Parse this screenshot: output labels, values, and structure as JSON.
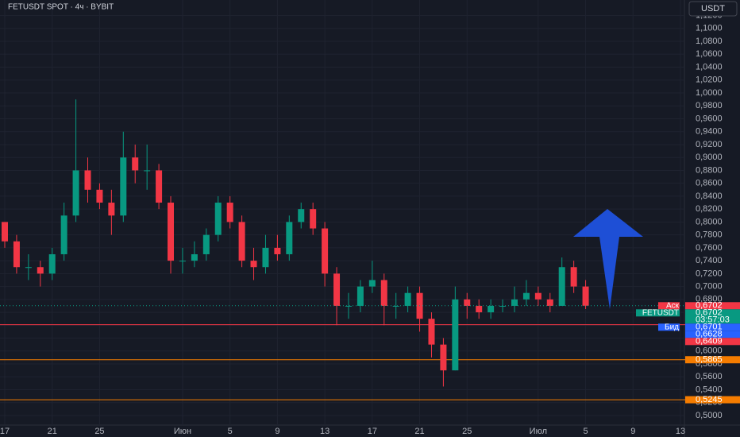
{
  "chart_data": {
    "type": "candlestick",
    "title": "FETUSDT SPOT · 4ч · BYBIT",
    "axis_unit": "USDT",
    "categories": [
      "17",
      null,
      null,
      null,
      "21",
      null,
      null,
      null,
      "25",
      null,
      null,
      null,
      null,
      null,
      null,
      "Июн",
      null,
      null,
      null,
      "5",
      null,
      null,
      null,
      "9",
      null,
      null,
      null,
      "13",
      null,
      null,
      null,
      "17",
      null,
      null,
      null,
      "21",
      null,
      null,
      null,
      "25",
      null,
      null,
      null,
      null,
      null,
      "Июл",
      null,
      null,
      null,
      "5",
      null,
      null,
      null,
      "9",
      null,
      null,
      null,
      "13"
    ],
    "open": [
      0.8,
      0.77,
      0.73,
      0.73,
      0.72,
      0.75,
      0.81,
      0.88,
      0.85,
      0.83,
      0.81,
      0.9,
      0.88,
      0.88,
      0.83,
      0.74,
      0.74,
      0.75,
      0.78,
      0.83,
      0.8,
      0.74,
      0.73,
      0.76,
      0.75,
      0.8,
      0.82,
      0.79,
      0.72,
      0.67,
      0.67,
      0.7,
      0.71,
      0.67,
      0.67,
      0.69,
      0.65,
      0.61,
      0.57,
      0.68,
      0.67,
      0.66,
      0.67,
      0.67,
      0.68,
      0.69,
      0.68,
      0.67,
      0.73,
      0.7,
      null,
      null,
      null,
      null,
      null,
      null,
      null,
      null
    ],
    "high": [
      0.8,
      0.78,
      0.75,
      0.74,
      0.76,
      0.83,
      0.99,
      0.9,
      0.86,
      0.85,
      0.94,
      0.92,
      0.92,
      0.89,
      0.84,
      0.76,
      0.77,
      0.79,
      0.84,
      0.84,
      0.81,
      0.76,
      0.78,
      0.78,
      0.81,
      0.83,
      0.83,
      0.8,
      0.73,
      0.69,
      0.71,
      0.74,
      0.72,
      0.69,
      0.7,
      0.7,
      0.66,
      0.62,
      0.7,
      0.69,
      0.68,
      0.68,
      0.68,
      0.7,
      0.71,
      0.7,
      0.69,
      0.745,
      0.74,
      0.71,
      null,
      null,
      null,
      null,
      null,
      null,
      null,
      null
    ],
    "low": [
      0.76,
      0.72,
      0.71,
      0.7,
      0.71,
      0.74,
      0.8,
      0.83,
      0.82,
      0.78,
      0.8,
      0.86,
      0.85,
      0.82,
      0.72,
      0.72,
      0.73,
      0.74,
      0.77,
      0.79,
      0.73,
      0.71,
      0.72,
      0.74,
      0.74,
      0.79,
      0.78,
      0.7,
      0.64,
      0.65,
      0.66,
      0.69,
      0.64,
      0.65,
      0.66,
      0.63,
      0.59,
      0.545,
      0.57,
      0.65,
      0.65,
      0.65,
      0.66,
      0.66,
      0.67,
      0.67,
      0.66,
      0.67,
      0.69,
      0.665,
      null,
      null,
      null,
      null,
      null,
      null,
      null,
      null
    ],
    "close": [
      0.77,
      0.73,
      0.73,
      0.72,
      0.75,
      0.81,
      0.88,
      0.85,
      0.83,
      0.81,
      0.9,
      0.88,
      0.88,
      0.83,
      0.74,
      0.74,
      0.75,
      0.78,
      0.83,
      0.8,
      0.74,
      0.73,
      0.76,
      0.75,
      0.8,
      0.82,
      0.79,
      0.72,
      0.67,
      0.67,
      0.7,
      0.71,
      0.67,
      0.67,
      0.69,
      0.65,
      0.61,
      0.57,
      0.68,
      0.67,
      0.66,
      0.67,
      0.67,
      0.68,
      0.69,
      0.68,
      0.67,
      0.73,
      0.7,
      0.6702,
      null,
      null,
      null,
      null,
      null,
      null,
      null,
      null
    ],
    "up_color": "#089981",
    "down_color": "#f23645",
    "ylim": [
      0.4852,
      1.1441
    ],
    "yticks": [
      {
        "value": 0.5,
        "label": "0,5000"
      },
      {
        "value": 0.52,
        "label": "0,5200"
      },
      {
        "value": 0.54,
        "label": "0,5400"
      },
      {
        "value": 0.56,
        "label": "0,5600"
      },
      {
        "value": 0.58,
        "label": "0,5800"
      },
      {
        "value": 0.6,
        "label": "0,6000"
      },
      {
        "value": 0.62,
        "label": "0,6200"
      },
      {
        "value": 0.64,
        "label": "0,6400"
      },
      {
        "value": 0.66,
        "label": "0,6600"
      },
      {
        "value": 0.68,
        "label": "0,6800"
      },
      {
        "value": 0.7,
        "label": "0,7000"
      },
      {
        "value": 0.72,
        "label": "0,7200"
      },
      {
        "value": 0.74,
        "label": "0,7400"
      },
      {
        "value": 0.76,
        "label": "0,7600"
      },
      {
        "value": 0.78,
        "label": "0,7800"
      },
      {
        "value": 0.8,
        "label": "0,8000"
      },
      {
        "value": 0.82,
        "label": "0,8200"
      },
      {
        "value": 0.84,
        "label": "0,8400"
      },
      {
        "value": 0.86,
        "label": "0,8600"
      },
      {
        "value": 0.88,
        "label": "0,8800"
      },
      {
        "value": 0.9,
        "label": "0,9000"
      },
      {
        "value": 0.92,
        "label": "0,9200"
      },
      {
        "value": 0.94,
        "label": "0,9400"
      },
      {
        "value": 0.96,
        "label": "0,9600"
      },
      {
        "value": 0.98,
        "label": "0,9800"
      },
      {
        "value": 1.0,
        "label": "1,0000"
      },
      {
        "value": 1.02,
        "label": "1,0200"
      },
      {
        "value": 1.04,
        "label": "1,0400"
      },
      {
        "value": 1.06,
        "label": "1,0600"
      },
      {
        "value": 1.08,
        "label": "1,0800"
      },
      {
        "value": 1.1,
        "label": "1,1000"
      },
      {
        "value": 1.12,
        "label": "1,1200"
      }
    ],
    "grid": true,
    "levels": [
      {
        "value": 0.6409,
        "color": "#f23645"
      },
      {
        "value": 0.5865,
        "color": "#f57c00"
      },
      {
        "value": 0.5245,
        "color": "#f57c00"
      }
    ],
    "price_labels": [
      {
        "name": "Аск",
        "value": 0.6702,
        "label": "0,6702",
        "color": "#f23645"
      },
      {
        "name": "FETUSDT",
        "value": 0.6702,
        "label": "0,6702",
        "sub": "03:57:03",
        "color": "#089981"
      },
      {
        "name": "Бид",
        "value": 0.6701,
        "label": "0,6701",
        "color": "#2962ff"
      },
      {
        "value": 0.6628,
        "label": "0,6628",
        "color": "#2962ff"
      },
      {
        "value": 0.6409,
        "label": "0,6409",
        "color": "#f23645"
      },
      {
        "value": 0.5865,
        "label": "0,5865",
        "color": "#f57c00"
      },
      {
        "value": 0.5245,
        "label": "0,5245",
        "color": "#f57c00"
      }
    ]
  }
}
